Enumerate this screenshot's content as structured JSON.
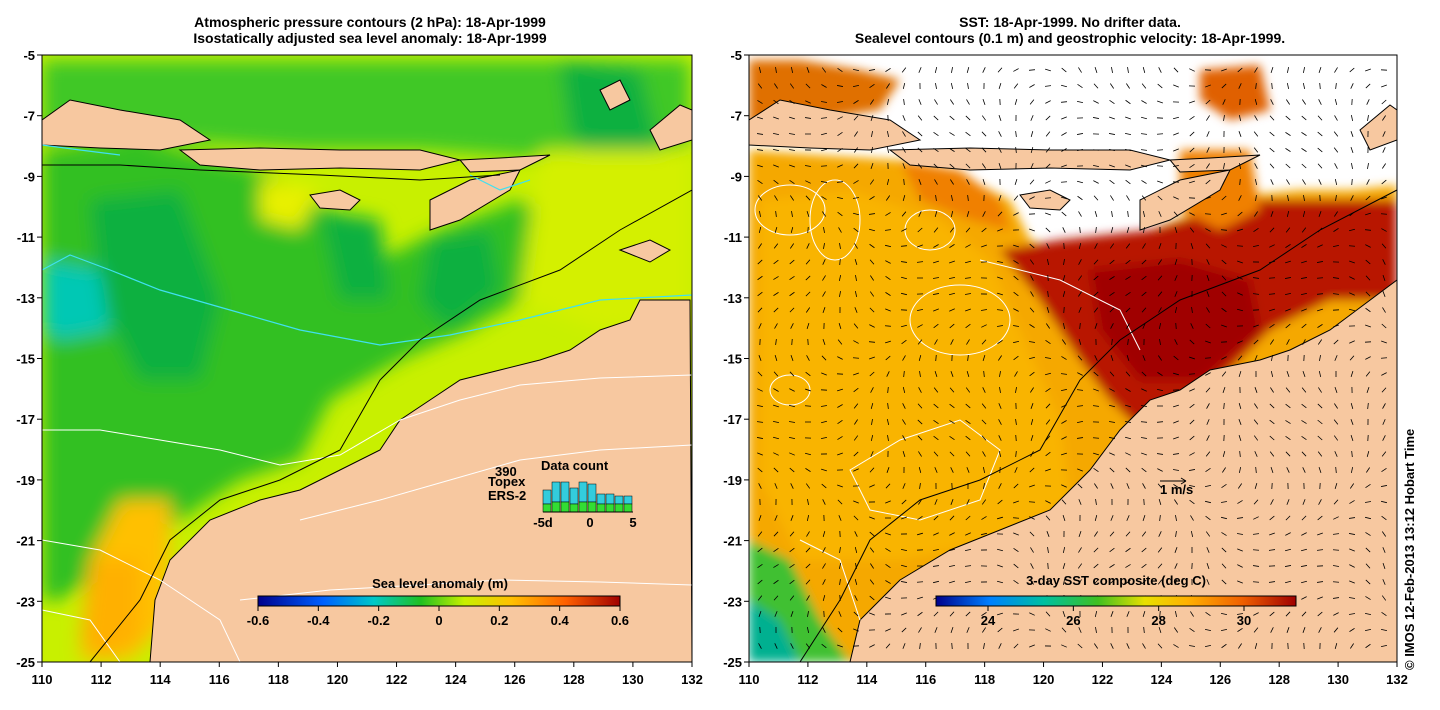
{
  "left_panel": {
    "title_line1": "Atmospheric pressure contours (2 hPa): 18-Apr-1999",
    "title_line2": "Isostatically adjusted sea level anomaly: 18-Apr-1999",
    "colorbar_title": "Sea level anomaly (m)",
    "colorbar_ticks": [
      "-0.6",
      "-0.4",
      "-0.2",
      "0",
      "0.2",
      "0.4",
      "0.6"
    ],
    "inset": {
      "title": "Data count",
      "count": "390",
      "series": [
        "Topex",
        "ERS-2"
      ],
      "series_colors": [
        "#33ccdd",
        "#33dd33"
      ],
      "x_ticks": [
        "-5d",
        "0",
        "5"
      ]
    }
  },
  "right_panel": {
    "title_line1": "SST: 18-Apr-1999. No drifter data.",
    "title_line2": "Sealevel contours (0.1 m) and geostrophic velocity: 18-Apr-1999.",
    "colorbar_title": "3-day SST composite (deg C)",
    "colorbar_ticks": [
      "24",
      "26",
      "28",
      "30"
    ],
    "velocity_scale_label": "1 m/s"
  },
  "axes": {
    "x_ticks": [
      "110",
      "112",
      "114",
      "116",
      "118",
      "120",
      "122",
      "124",
      "126",
      "128",
      "130",
      "132"
    ],
    "y_ticks": [
      "-5",
      "-7",
      "-9",
      "-11",
      "-13",
      "-15",
      "-17",
      "-19",
      "-21",
      "-23",
      "-25"
    ],
    "lon_range": [
      110,
      132
    ],
    "lat_range": [
      -25,
      -5
    ]
  },
  "copyright": "© IMOS 12-Feb-2013 13:12 Hobart Time",
  "colors": {
    "land": "#f7c8a0",
    "sla_colormap": [
      "#00008c",
      "#0060ff",
      "#00c8c8",
      "#20c020",
      "#c8f000",
      "#ffc000",
      "#ff6000",
      "#a00000"
    ],
    "sst_colormap": [
      "#00008c",
      "#0080ff",
      "#00c0a0",
      "#40c020",
      "#e8e000",
      "#ffb000",
      "#f06000",
      "#a00000"
    ]
  }
}
